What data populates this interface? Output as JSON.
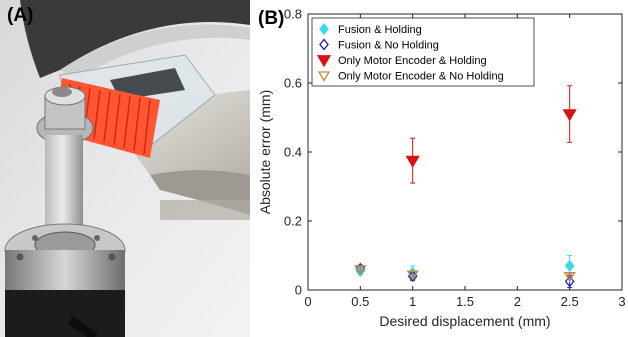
{
  "panels": {
    "a_label": "(A)",
    "b_label": "(B)"
  },
  "chart_data": {
    "type": "scatter",
    "xlabel": "Desired displacement (mm)",
    "ylabel": "Absolute error (mm)",
    "xlim": [
      0,
      3
    ],
    "ylim": [
      0,
      0.8
    ],
    "x_ticks": [
      0,
      0.5,
      1,
      1.5,
      2,
      2.5,
      3
    ],
    "x_tick_labels": [
      "0",
      "0.5",
      "1",
      "1.5",
      "2",
      "2.5",
      "3"
    ],
    "y_ticks": [
      0,
      0.2,
      0.4,
      0.6,
      0.8
    ],
    "y_tick_labels": [
      "0",
      "0.2",
      "0.4",
      "0.6",
      "0.8"
    ],
    "grid": false,
    "legend_position": "top-left",
    "series": [
      {
        "name": "Fusion & Holding",
        "marker": "diamond-filled",
        "color": "#33ddee",
        "points": [
          {
            "x": 0.5,
            "y": 0.055,
            "err": 0.012
          },
          {
            "x": 1,
            "y": 0.05,
            "err": 0.02
          },
          {
            "x": 2.5,
            "y": 0.07,
            "err": 0.03
          }
        ]
      },
      {
        "name": "Fusion & No Holding",
        "marker": "diamond-open",
        "color": "#1a1acc",
        "points": [
          {
            "x": 0.5,
            "y": 0.062,
            "err": 0.01
          },
          {
            "x": 1,
            "y": 0.04,
            "err": 0.012
          },
          {
            "x": 2.5,
            "y": 0.025,
            "err": 0.018
          }
        ]
      },
      {
        "name": "Only Motor Encoder & Holding",
        "marker": "triangle-down-filled",
        "color": "#dd1111",
        "points": [
          {
            "x": 1,
            "y": 0.375,
            "err": 0.065
          },
          {
            "x": 2.5,
            "y": 0.51,
            "err": 0.082
          }
        ]
      },
      {
        "name": "Only Motor Encoder & No Holding",
        "marker": "triangle-down-open",
        "color": "#cc8833",
        "points": [
          {
            "x": 0.5,
            "y": 0.06,
            "err": 0.008
          },
          {
            "x": 1,
            "y": 0.045,
            "err": 0.008
          },
          {
            "x": 2.5,
            "y": 0.04,
            "err": 0.008
          }
        ]
      }
    ]
  }
}
